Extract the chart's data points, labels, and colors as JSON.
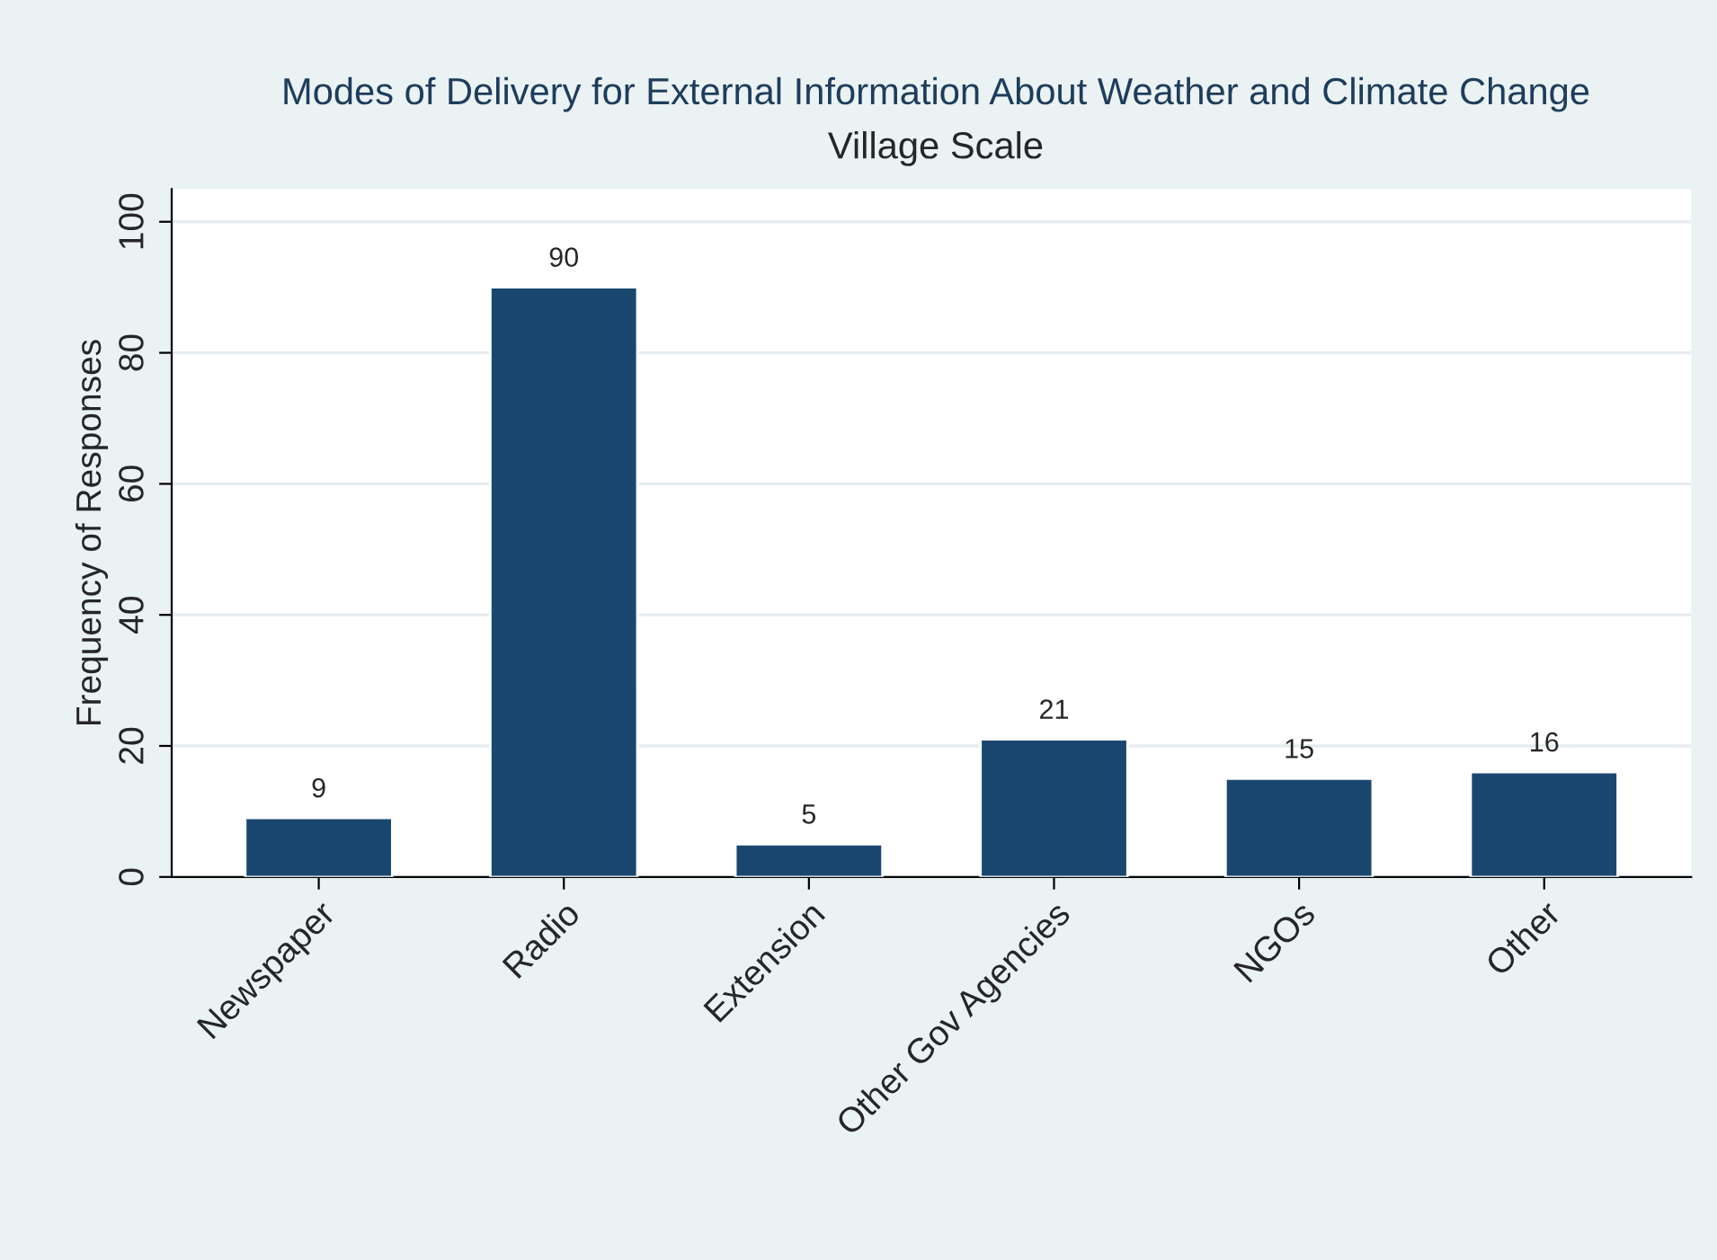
{
  "chart_data": {
    "type": "bar",
    "title": "Modes of Delivery for External Information About Weather and Climate Change",
    "subtitle": "Village Scale",
    "ylabel": "Frequency of Responses",
    "categories": [
      "Newspaper",
      "Radio",
      "Extension",
      "Other Gov Agencies",
      "NGOs",
      "Other"
    ],
    "values": [
      9,
      90,
      5,
      21,
      15,
      16
    ],
    "color": "#1a476f",
    "ylim": [
      0,
      105
    ],
    "yticks": [
      0,
      20,
      40,
      60,
      80,
      100
    ],
    "grid": "y",
    "data_labels": true
  }
}
